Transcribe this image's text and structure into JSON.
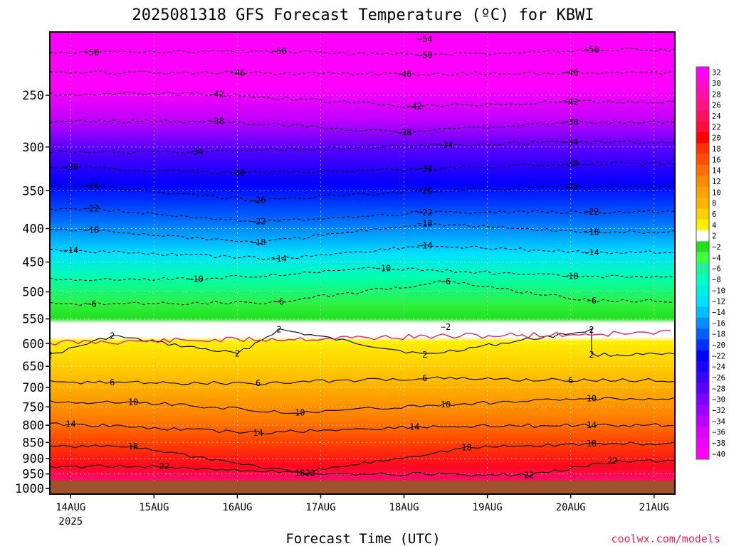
{
  "chart_data": {
    "type": "heatmap",
    "title": "2025081318 GFS Forecast Temperature (ºC) for KBWI",
    "xlabel": "Forecast Time (UTC)",
    "ylabel": "",
    "y_scale": "log",
    "y_reversed": true,
    "ylim": [
      1000,
      200
    ],
    "xlim": [
      "2025-08-13T18:00Z",
      "2025-08-21T06:00Z"
    ],
    "x_ticks": [
      {
        "value": "2025-08-14T00:00Z",
        "label": "14AUG",
        "sublabel": "2025"
      },
      {
        "value": "2025-08-15T00:00Z",
        "label": "15AUG"
      },
      {
        "value": "2025-08-16T00:00Z",
        "label": "16AUG"
      },
      {
        "value": "2025-08-17T00:00Z",
        "label": "17AUG"
      },
      {
        "value": "2025-08-18T00:00Z",
        "label": "18AUG"
      },
      {
        "value": "2025-08-19T00:00Z",
        "label": "19AUG"
      },
      {
        "value": "2025-08-20T00:00Z",
        "label": "20AUG"
      },
      {
        "value": "2025-08-21T00:00Z",
        "label": "21AUG"
      }
    ],
    "y_ticks": [
      250,
      300,
      350,
      400,
      450,
      500,
      550,
      600,
      650,
      700,
      750,
      800,
      850,
      900,
      950,
      1000
    ],
    "grid": true,
    "contour_interval": 4,
    "contour_labels": [
      {
        "value": -54,
        "x": "2025-08-18T06:00Z",
        "p": 205
      },
      {
        "value": -50,
        "x": "2025-08-14T06:00Z",
        "p": 215
      },
      {
        "value": -50,
        "x": "2025-08-16T12:00Z",
        "p": 214
      },
      {
        "value": -50,
        "x": "2025-08-18T06:00Z",
        "p": 217
      },
      {
        "value": -50,
        "x": "2025-08-20T06:00Z",
        "p": 213
      },
      {
        "value": -46,
        "x": "2025-08-16T00:00Z",
        "p": 231
      },
      {
        "value": -46,
        "x": "2025-08-18T00:00Z",
        "p": 232
      },
      {
        "value": -46,
        "x": "2025-08-20T00:00Z",
        "p": 231
      },
      {
        "value": -42,
        "x": "2025-08-15T18:00Z",
        "p": 249
      },
      {
        "value": -42,
        "x": "2025-08-18T03:00Z",
        "p": 260
      },
      {
        "value": -42,
        "x": "2025-08-20T00:00Z",
        "p": 256
      },
      {
        "value": -38,
        "x": "2025-08-15T18:00Z",
        "p": 274
      },
      {
        "value": -38,
        "x": "2025-08-18T00:00Z",
        "p": 285
      },
      {
        "value": -38,
        "x": "2025-08-20T00:00Z",
        "p": 275
      },
      {
        "value": -34,
        "x": "2025-08-15T12:00Z",
        "p": 305
      },
      {
        "value": -34,
        "x": "2025-08-18T12:00Z",
        "p": 298
      },
      {
        "value": -34,
        "x": "2025-08-20T00:00Z",
        "p": 295
      },
      {
        "value": -30,
        "x": "2025-08-14T00:00Z",
        "p": 322
      },
      {
        "value": -30,
        "x": "2025-08-16T00:00Z",
        "p": 329
      },
      {
        "value": -30,
        "x": "2025-08-18T06:00Z",
        "p": 324
      },
      {
        "value": -30,
        "x": "2025-08-20T00:00Z",
        "p": 318
      },
      {
        "value": -26,
        "x": "2025-08-14T06:00Z",
        "p": 344
      },
      {
        "value": -26,
        "x": "2025-08-16T06:00Z",
        "p": 362
      },
      {
        "value": -26,
        "x": "2025-08-18T06:00Z",
        "p": 350
      },
      {
        "value": -26,
        "x": "2025-08-20T00:00Z",
        "p": 345
      },
      {
        "value": -22,
        "x": "2025-08-14T06:00Z",
        "p": 373
      },
      {
        "value": -22,
        "x": "2025-08-16T06:00Z",
        "p": 390
      },
      {
        "value": -22,
        "x": "2025-08-18T06:00Z",
        "p": 378
      },
      {
        "value": -22,
        "x": "2025-08-20T06:00Z",
        "p": 377
      },
      {
        "value": -18,
        "x": "2025-08-14T06:00Z",
        "p": 402
      },
      {
        "value": -18,
        "x": "2025-08-16T06:00Z",
        "p": 420
      },
      {
        "value": -18,
        "x": "2025-08-18T06:00Z",
        "p": 393
      },
      {
        "value": -18,
        "x": "2025-08-20T06:00Z",
        "p": 405
      },
      {
        "value": -14,
        "x": "2025-08-14T00:00Z",
        "p": 432
      },
      {
        "value": -14,
        "x": "2025-08-16T12:00Z",
        "p": 445
      },
      {
        "value": -14,
        "x": "2025-08-18T06:00Z",
        "p": 425
      },
      {
        "value": -14,
        "x": "2025-08-20T06:00Z",
        "p": 435
      },
      {
        "value": -10,
        "x": "2025-08-15T12:00Z",
        "p": 478
      },
      {
        "value": -10,
        "x": "2025-08-17T18:00Z",
        "p": 460
      },
      {
        "value": -10,
        "x": "2025-08-20T00:00Z",
        "p": 473
      },
      {
        "value": -6,
        "x": "2025-08-14T06:00Z",
        "p": 522
      },
      {
        "value": -6,
        "x": "2025-08-16T12:00Z",
        "p": 518
      },
      {
        "value": -6,
        "x": "2025-08-18T12:00Z",
        "p": 482
      },
      {
        "value": -6,
        "x": "2025-08-20T06:00Z",
        "p": 516
      },
      {
        "value": -2,
        "x": "2025-08-18T12:00Z",
        "p": 566
      },
      {
        "value": 2,
        "x": "2025-08-14T12:00Z",
        "p": 584
      },
      {
        "value": 2,
        "x": "2025-08-16T12:00Z",
        "p": 571
      },
      {
        "value": 2,
        "x": "2025-08-18T06:00Z",
        "p": 624
      },
      {
        "value": 2,
        "x": "2025-08-20T06:00Z",
        "p": 572
      },
      {
        "value": 2,
        "x": "2025-08-13T18:00Z",
        "p": 625
      },
      {
        "value": 2,
        "x": "2025-08-16T00:00Z",
        "p": 622
      },
      {
        "value": 2,
        "x": "2025-08-20T06:00Z",
        "p": 624
      },
      {
        "value": 6,
        "x": "2025-08-14T12:00Z",
        "p": 688
      },
      {
        "value": 6,
        "x": "2025-08-16T06:00Z",
        "p": 690
      },
      {
        "value": 6,
        "x": "2025-08-18T06:00Z",
        "p": 678
      },
      {
        "value": 6,
        "x": "2025-08-20T00:00Z",
        "p": 683
      },
      {
        "value": 10,
        "x": "2025-08-14T18:00Z",
        "p": 737
      },
      {
        "value": 10,
        "x": "2025-08-16T18:00Z",
        "p": 766
      },
      {
        "value": 10,
        "x": "2025-08-18T12:00Z",
        "p": 744
      },
      {
        "value": 10,
        "x": "2025-08-20T06:00Z",
        "p": 728
      },
      {
        "value": 14,
        "x": "2025-08-14T00:00Z",
        "p": 797
      },
      {
        "value": 14,
        "x": "2025-08-16T06:00Z",
        "p": 822
      },
      {
        "value": 14,
        "x": "2025-08-18T03:00Z",
        "p": 805
      },
      {
        "value": 14,
        "x": "2025-08-20T06:00Z",
        "p": 800
      },
      {
        "value": 18,
        "x": "2025-08-14T18:00Z",
        "p": 862
      },
      {
        "value": 18,
        "x": "2025-08-16T18:00Z",
        "p": 947
      },
      {
        "value": 18,
        "x": "2025-08-18T18:00Z",
        "p": 866
      },
      {
        "value": 18,
        "x": "2025-08-20T06:00Z",
        "p": 854
      },
      {
        "value": 22,
        "x": "2025-08-15T03:00Z",
        "p": 925
      },
      {
        "value": 22,
        "x": "2025-08-16T21:00Z",
        "p": 947
      },
      {
        "value": 22,
        "x": "2025-08-19T12:00Z",
        "p": 955
      },
      {
        "value": 22,
        "x": "2025-08-20T12:00Z",
        "p": 908
      }
    ],
    "colorbar": {
      "levels": [
        32,
        30,
        28,
        26,
        24,
        22,
        20,
        18,
        16,
        14,
        12,
        10,
        8,
        6,
        4,
        2,
        -2,
        -4,
        -6,
        -8,
        -10,
        -12,
        -14,
        -16,
        -18,
        -20,
        -22,
        -24,
        -26,
        -28,
        -30,
        -32,
        -34,
        -36,
        -38,
        -40
      ],
      "colors": [
        "#ff00ff",
        "#ff0cd0",
        "#ff10a8",
        "#ff1484",
        "#ff1060",
        "#ff0c3c",
        "#ff0000",
        "#ff3200",
        "#ff5000",
        "#ff6e00",
        "#ff8a00",
        "#ffa000",
        "#ffb400",
        "#ffd000",
        "#ffee00",
        "#ffffff",
        "#20e020",
        "#40ff40",
        "#20f0a0",
        "#00ffc0",
        "#00f0e0",
        "#00e0ff",
        "#00c0ff",
        "#0090ff",
        "#0060ff",
        "#0030ff",
        "#0000ff",
        "#1c00ff",
        "#3c00ff",
        "#5c00ff",
        "#7c00ff",
        "#9c00ff",
        "#bc00ff",
        "#dc00ff",
        "#ee00ff",
        "#ff00ff"
      ]
    }
  },
  "credit": "coolwx.com/models"
}
